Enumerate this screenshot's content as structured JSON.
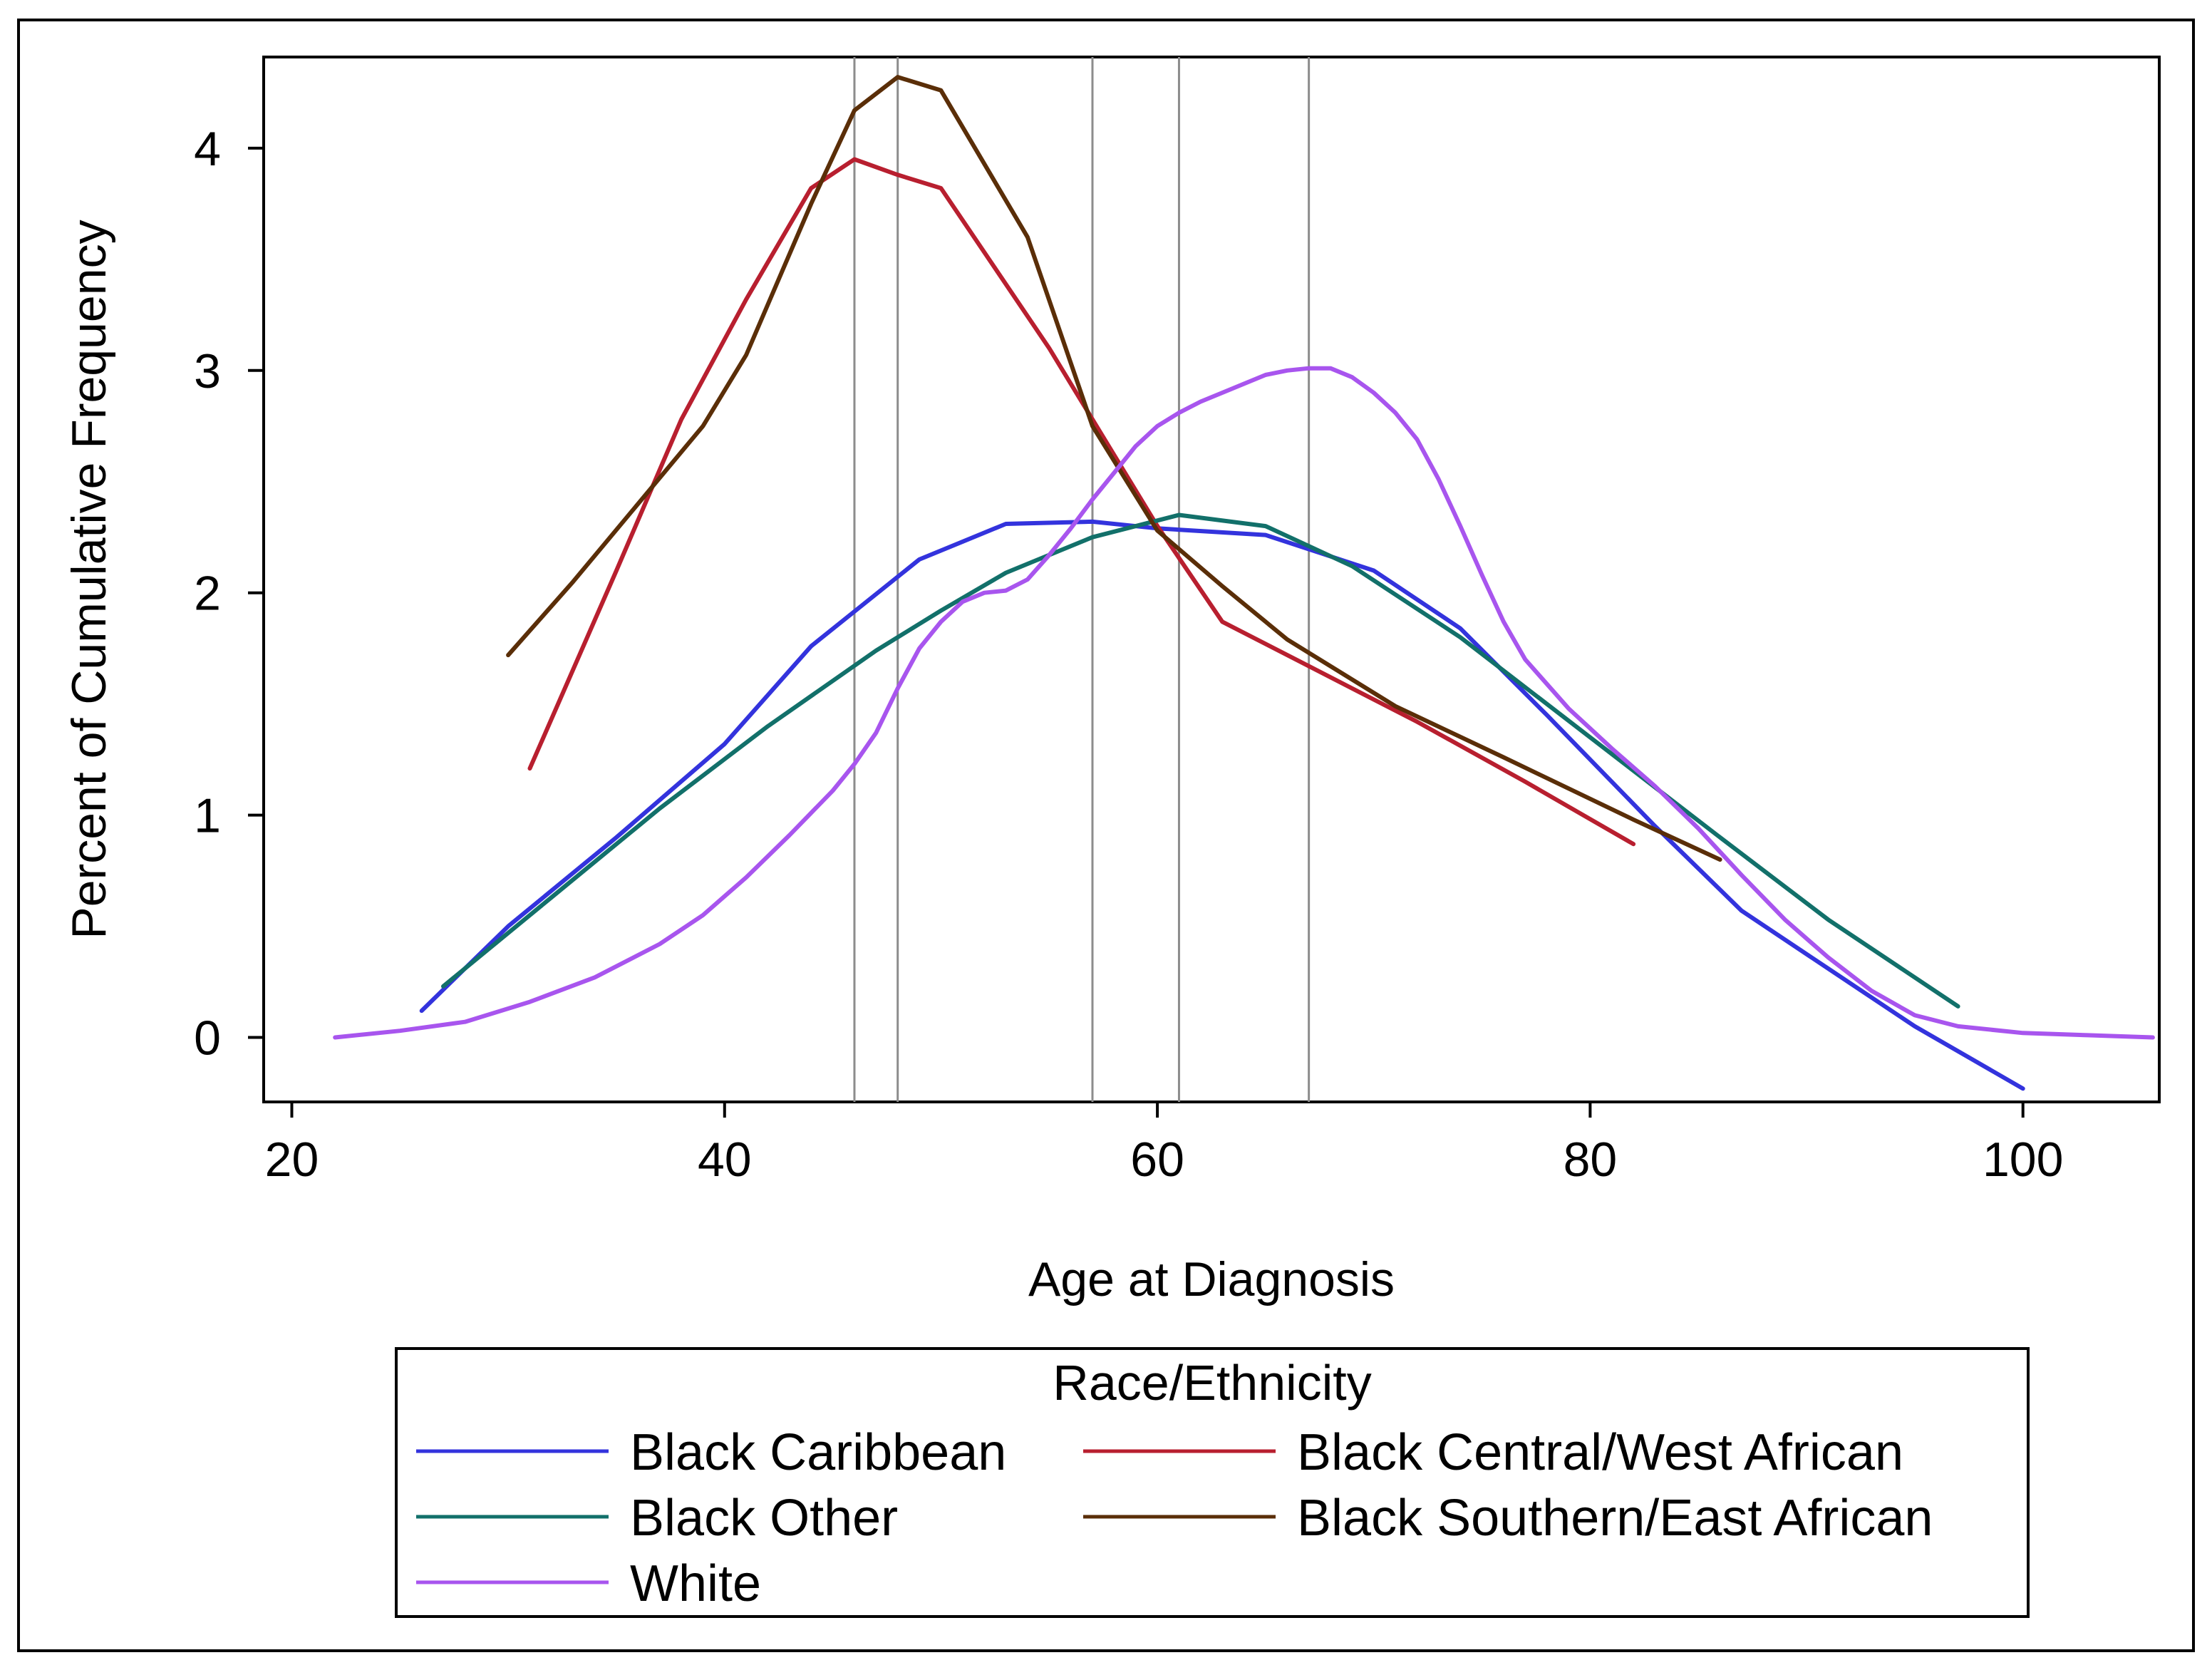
{
  "chart_data": {
    "type": "line",
    "title": "",
    "xlabel": "Age at Diagnosis",
    "ylabel": "Percent of Cumulative Frequency",
    "xlim": [
      18.7,
      106.3
    ],
    "ylim": [
      -0.29,
      4.41
    ],
    "x_ticks": [
      20,
      40,
      60,
      80,
      100
    ],
    "x_tick_labels": [
      "20",
      "40",
      "60",
      "80",
      "100"
    ],
    "y_ticks": [
      0,
      1,
      2,
      3,
      4
    ],
    "y_tick_labels": [
      "0",
      "1",
      "2",
      "3",
      "4"
    ],
    "reference_lines_x": [
      46,
      48,
      57,
      61,
      67
    ],
    "reference_line_color": "#8c8c8c",
    "grid": false,
    "legend": {
      "title": "Race/Ethnicity",
      "placement": "bottom",
      "columns": 2
    },
    "series": [
      {
        "name": "Black Caribbean",
        "color": "#3333dd",
        "x": [
          26,
          30,
          35,
          40,
          44,
          49,
          53,
          57,
          60,
          65,
          70,
          74,
          78,
          83,
          87,
          91,
          95,
          100
        ],
        "y": [
          0.12,
          0.5,
          0.9,
          1.32,
          1.76,
          2.15,
          2.31,
          2.32,
          2.29,
          2.26,
          2.1,
          1.84,
          1.45,
          0.95,
          0.57,
          0.31,
          0.05,
          -0.23
        ]
      },
      {
        "name": "Black Central/West African",
        "color": "#b81f2f",
        "x": [
          31,
          35,
          38,
          41,
          44,
          46,
          48,
          50,
          55,
          60,
          63,
          67,
          72,
          77,
          82
        ],
        "y": [
          1.21,
          2.1,
          2.78,
          3.32,
          3.82,
          3.95,
          3.88,
          3.82,
          3.1,
          2.3,
          1.87,
          1.67,
          1.42,
          1.15,
          0.87
        ]
      },
      {
        "name": "Black Other",
        "color": "#12706a",
        "x": [
          27,
          32,
          37,
          42,
          47,
          50,
          53,
          57,
          61,
          65,
          69,
          74,
          80,
          86,
          91,
          97
        ],
        "y": [
          0.23,
          0.63,
          1.03,
          1.4,
          1.74,
          1.92,
          2.09,
          2.25,
          2.35,
          2.3,
          2.12,
          1.8,
          1.35,
          0.9,
          0.53,
          0.14
        ]
      },
      {
        "name": "Black Southern/East African",
        "color": "#5a2e08",
        "x": [
          30,
          33,
          36,
          39,
          41,
          44,
          46,
          48,
          50,
          54,
          57,
          60,
          63,
          66,
          71,
          76,
          82,
          86
        ],
        "y": [
          1.72,
          2.05,
          2.4,
          2.75,
          3.07,
          3.75,
          4.17,
          4.32,
          4.26,
          3.6,
          2.75,
          2.28,
          2.03,
          1.79,
          1.49,
          1.26,
          0.98,
          0.8
        ]
      },
      {
        "name": "White",
        "color": "#a855ee",
        "x": [
          22,
          25,
          28,
          31,
          34,
          37,
          39,
          41,
          43,
          45,
          46,
          47,
          48,
          49,
          50,
          51,
          52,
          53,
          54,
          55,
          56,
          57,
          58,
          59,
          60,
          61,
          62,
          63,
          64,
          65,
          66,
          67,
          68,
          69,
          70,
          71,
          72,
          73,
          74,
          75,
          76,
          77,
          79,
          81,
          83,
          85,
          87,
          89,
          91,
          93,
          95,
          97,
          100,
          103,
          106
        ],
        "y": [
          0.0,
          0.03,
          0.07,
          0.16,
          0.27,
          0.42,
          0.55,
          0.72,
          0.91,
          1.11,
          1.23,
          1.37,
          1.57,
          1.75,
          1.87,
          1.96,
          2.0,
          2.01,
          2.06,
          2.17,
          2.29,
          2.42,
          2.54,
          2.66,
          2.75,
          2.81,
          2.86,
          2.9,
          2.94,
          2.98,
          3.0,
          3.01,
          3.01,
          2.97,
          2.9,
          2.81,
          2.69,
          2.51,
          2.3,
          2.08,
          1.87,
          1.7,
          1.48,
          1.3,
          1.13,
          0.94,
          0.73,
          0.53,
          0.36,
          0.21,
          0.1,
          0.05,
          0.02,
          0.01,
          0.0
        ]
      }
    ]
  }
}
